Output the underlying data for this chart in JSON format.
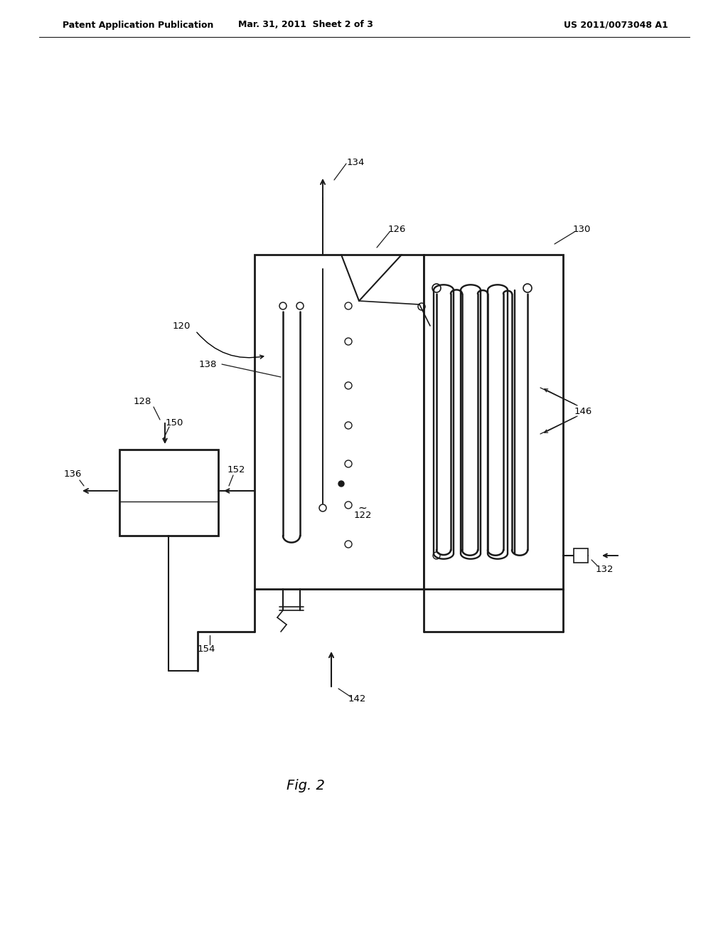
{
  "bg_color": "#ffffff",
  "header_left": "Patent Application Publication",
  "header_center": "Mar. 31, 2011  Sheet 2 of 3",
  "header_right": "US 2011/0073048 A1",
  "fig_label": "Fig. 2",
  "lw_thick": 2.0,
  "lw_main": 1.5,
  "lw_thin": 1.0
}
